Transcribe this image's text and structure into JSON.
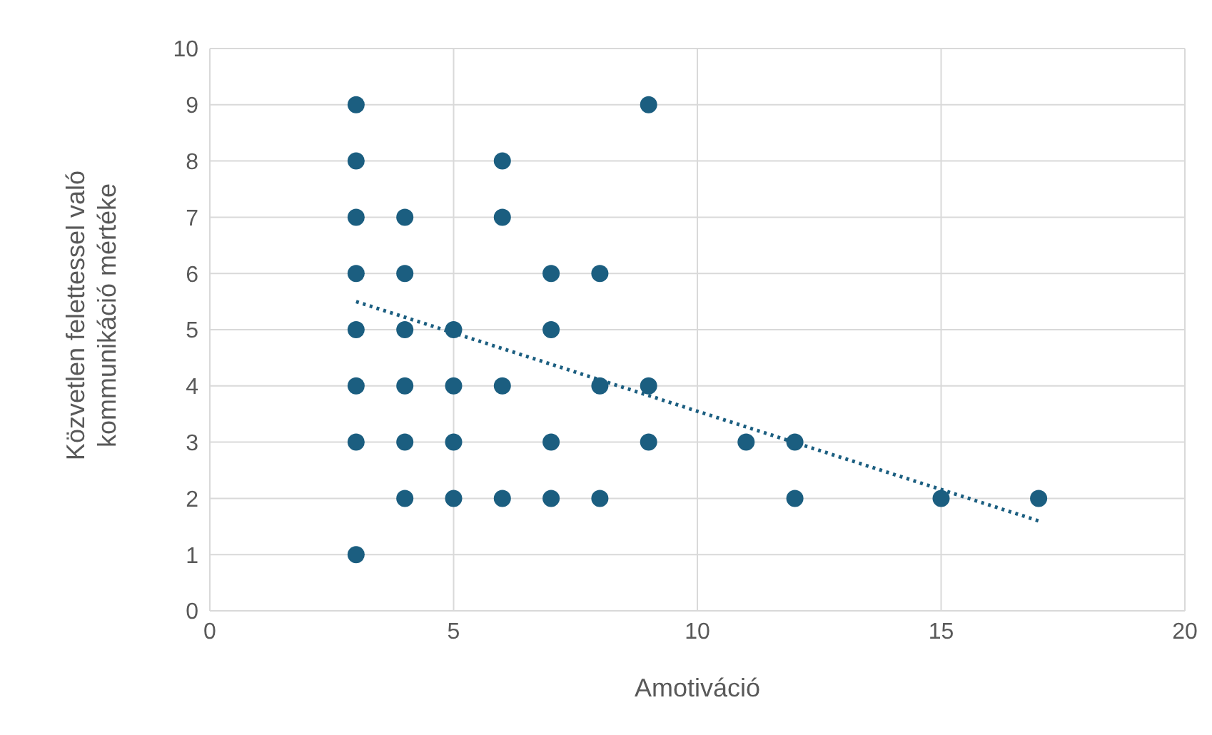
{
  "chart_data": {
    "type": "scatter",
    "xlabel": "Amotiváció",
    "ylabel": "Közvetlen felettessel való kommunikáció mértéke",
    "xlim": [
      0,
      20
    ],
    "xticks": [
      0,
      5,
      10,
      15,
      20
    ],
    "ylim": [
      0,
      10
    ],
    "yticks": [
      0,
      1,
      2,
      3,
      4,
      5,
      6,
      7,
      8,
      9,
      10
    ],
    "grid": true,
    "marker": "circle",
    "series": [
      {
        "color": "#1b5e80",
        "x": [
          3,
          3,
          3,
          3,
          3,
          3,
          3,
          3,
          4,
          4,
          4,
          4,
          4,
          4,
          5,
          5,
          5,
          5,
          6,
          6,
          6,
          6,
          7,
          7,
          7,
          7,
          8,
          8,
          8,
          9,
          9,
          9,
          11,
          12,
          12,
          15,
          17
        ],
        "values": [
          9,
          8,
          7,
          6,
          5,
          4,
          3,
          1,
          7,
          6,
          5,
          4,
          3,
          2,
          5,
          4,
          3,
          2,
          8,
          7,
          4,
          2,
          6,
          5,
          3,
          2,
          6,
          4,
          2,
          9,
          4,
          3,
          3,
          3,
          2,
          2,
          2
        ]
      },
      {
        "type": "line",
        "color": "#1b5e80",
        "line_style": "dotted",
        "marker": "none",
        "x": [
          3,
          17
        ],
        "values": [
          5.5,
          1.6
        ]
      }
    ]
  }
}
